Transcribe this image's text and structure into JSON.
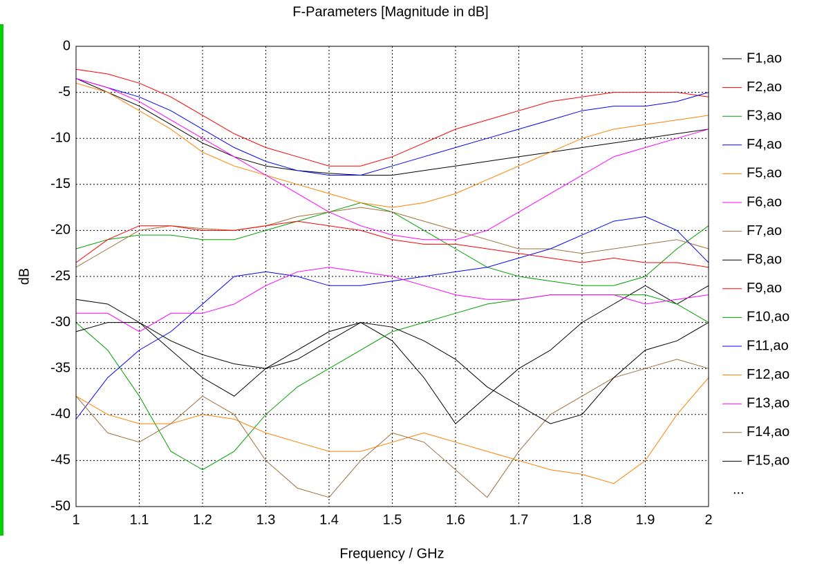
{
  "chart_data": {
    "type": "line",
    "title": "F-Parameters [Magnitude in dB]",
    "xlabel": "Frequency / GHz",
    "ylabel": "dB",
    "legend_more": "...",
    "grid": true,
    "legend": "right",
    "xlim": [
      1,
      2
    ],
    "xticks": [
      1,
      1.1,
      1.2,
      1.3,
      1.4,
      1.5,
      1.6,
      1.7,
      1.8,
      1.9,
      2
    ],
    "ylim": [
      -50,
      0
    ],
    "yticks": [
      0,
      -5,
      -10,
      -15,
      -20,
      -25,
      -30,
      -35,
      -40,
      -45,
      -50
    ],
    "x": [
      1,
      1.05,
      1.1,
      1.15,
      1.2,
      1.25,
      1.3,
      1.35,
      1.4,
      1.45,
      1.5,
      1.55,
      1.6,
      1.65,
      1.7,
      1.75,
      1.8,
      1.85,
      1.9,
      1.95,
      2
    ],
    "series": [
      {
        "name": "F1,ao",
        "color": "#000000",
        "values": [
          -3.5,
          -5,
          -6.5,
          -8.5,
          -10.5,
          -12,
          -13,
          -13.5,
          -13.8,
          -14,
          -14,
          -13.5,
          -13,
          -12.5,
          -12,
          -11.5,
          -11,
          -10.5,
          -10,
          -9.5,
          -9
        ]
      },
      {
        "name": "F2,ao",
        "color": "#ff0000",
        "values": [
          -2.5,
          -3,
          -4,
          -5.5,
          -7.5,
          -9.5,
          -11,
          -12,
          -13,
          -13,
          -12,
          -10.5,
          -9,
          -8,
          -7,
          -6,
          -5.5,
          -5,
          -5,
          -5,
          -5.5
        ]
      },
      {
        "name": "F3,ao",
        "color": "#00a000",
        "values": [
          -22,
          -21,
          -20.5,
          -20.5,
          -21,
          -21,
          -20,
          -19,
          -18,
          -17,
          -18,
          -20,
          -22,
          -24,
          -25,
          -25.5,
          -26,
          -26,
          -25,
          -22,
          -19.5
        ]
      },
      {
        "name": "F4,ao",
        "color": "#0000ff",
        "values": [
          -3.5,
          -4.5,
          -5.5,
          -7,
          -9,
          -11,
          -12.5,
          -13.5,
          -14,
          -14,
          -13,
          -12,
          -11,
          -10,
          -9,
          -8,
          -7,
          -6.5,
          -6.5,
          -6,
          -5
        ]
      },
      {
        "name": "F5,ao",
        "color": "#ff8000",
        "values": [
          -4,
          -5,
          -7,
          -9,
          -11.5,
          -13,
          -14,
          -15,
          -16,
          -17,
          -17.5,
          -17,
          -16,
          -14.5,
          -13,
          -11.5,
          -10,
          -9,
          -8.5,
          -8,
          -7.5
        ]
      },
      {
        "name": "F6,ao",
        "color": "#ff00ff",
        "values": [
          -3.5,
          -4.5,
          -6,
          -8,
          -10,
          -12,
          -14,
          -16,
          -18,
          -19.5,
          -20.5,
          -21,
          -21,
          -20,
          -18,
          -16,
          -14,
          -12,
          -11,
          -10,
          -9
        ]
      },
      {
        "name": "F7,ao",
        "color": "#a0703c",
        "values": [
          -24,
          -22,
          -20,
          -19.5,
          -19.8,
          -20,
          -19.5,
          -18.5,
          -18,
          -17.5,
          -18,
          -19,
          -20,
          -21,
          -22,
          -22,
          -22.5,
          -22,
          -21.5,
          -21,
          -22
        ]
      },
      {
        "name": "F8,ao",
        "color": "#000000",
        "values": [
          -27.5,
          -28,
          -30,
          -33,
          -36,
          -38,
          -35,
          -33,
          -31,
          -30,
          -32,
          -36,
          -41,
          -38,
          -35,
          -33,
          -30,
          -28,
          -26,
          -28,
          -26
        ]
      },
      {
        "name": "F9,ao",
        "color": "#ff0000",
        "values": [
          -23.5,
          -21,
          -19.5,
          -19.5,
          -20,
          -20,
          -19.5,
          -19,
          -19.5,
          -20,
          -21,
          -21.5,
          -21.5,
          -22,
          -22.5,
          -23,
          -23.5,
          -23,
          -23.5,
          -23.5,
          -24
        ]
      },
      {
        "name": "F10,ao",
        "color": "#00a000",
        "values": [
          -30,
          -33,
          -38,
          -44,
          -46,
          -44,
          -40,
          -37,
          -35,
          -33,
          -31,
          -30,
          -29,
          -28,
          -27.5,
          -27,
          -27,
          -27,
          -27,
          -28,
          -30
        ]
      },
      {
        "name": "F11,ao",
        "color": "#0000ff",
        "values": [
          -40.5,
          -36,
          -33,
          -31,
          -28,
          -25,
          -24.5,
          -25,
          -26,
          -26,
          -25.5,
          -25,
          -24.5,
          -24,
          -23,
          -22,
          -20.5,
          -19,
          -18.5,
          -20,
          -23.5
        ]
      },
      {
        "name": "F12,ao",
        "color": "#ff8000",
        "values": [
          -38,
          -40,
          -41,
          -41,
          -40,
          -40.5,
          -42,
          -43,
          -44,
          -44,
          -43,
          -42,
          -43,
          -44,
          -45,
          -46,
          -46.5,
          -47.5,
          -45,
          -40,
          -36
        ]
      },
      {
        "name": "F13,ao",
        "color": "#ff00ff",
        "values": [
          -29,
          -29,
          -31,
          -29,
          -29,
          -28,
          -26,
          -24.5,
          -24,
          -24.5,
          -25,
          -26,
          -27,
          -27.5,
          -27.5,
          -27,
          -27,
          -27,
          -28,
          -27.5,
          -27
        ]
      },
      {
        "name": "F14,ao",
        "color": "#a0703c",
        "values": [
          -38,
          -42,
          -43,
          -41,
          -38,
          -40,
          -45,
          -48,
          -49,
          -45,
          -42,
          -43,
          -46,
          -49,
          -44,
          -40,
          -38,
          -36,
          -35,
          -34,
          -35
        ]
      },
      {
        "name": "F15,ao",
        "color": "#000000",
        "values": [
          -31,
          -30,
          -30,
          -32,
          -33.5,
          -34.5,
          -35,
          -34,
          -32,
          -30,
          -30.5,
          -32,
          -34,
          -37,
          -39,
          -41,
          -40,
          -36,
          -33,
          -32,
          -30
        ]
      }
    ]
  }
}
